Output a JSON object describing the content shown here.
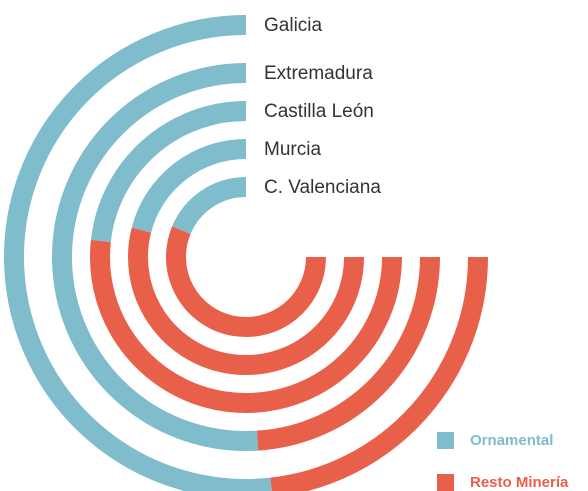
{
  "chart_data": {
    "type": "radial_stacked_bar",
    "categories": [
      "Galicia",
      "Extremadura",
      "Castilla León",
      "Murcia",
      "C. Valenciana"
    ],
    "series": [
      {
        "name": "Ornamental",
        "color": "#7fbccc",
        "values": [
          69,
          68,
          31,
          28,
          25
        ]
      },
      {
        "name": "Resto Minería",
        "color": "#e8604a",
        "values": [
          31,
          32,
          69,
          72,
          75
        ]
      }
    ],
    "legend": "lower right"
  }
}
